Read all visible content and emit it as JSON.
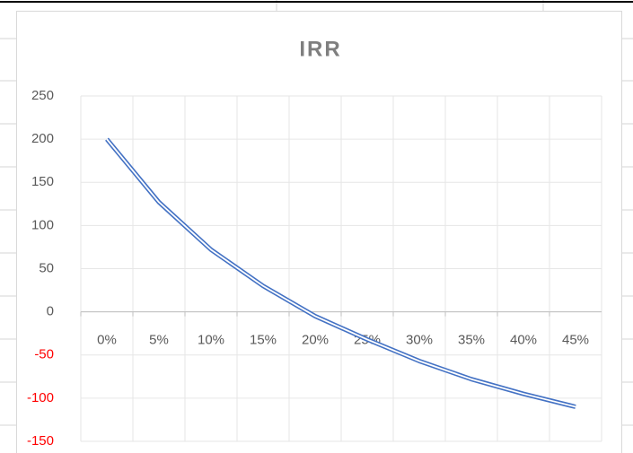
{
  "chart_data": {
    "type": "line",
    "title": "IRR",
    "categories": [
      "0%",
      "5%",
      "10%",
      "15%",
      "20%",
      "25%",
      "30%",
      "35%",
      "40%",
      "45%"
    ],
    "series": [
      {
        "color": "#4472c4",
        "values": [
          200,
          127,
          72,
          30,
          -5,
          -32,
          -57,
          -78,
          -95,
          -110
        ]
      }
    ],
    "ylim": [
      -150,
      250
    ],
    "yticks": [
      -150,
      -100,
      -50,
      0,
      50,
      100,
      150,
      200,
      250
    ],
    "grid": true,
    "negative_tick_color": "#ff0000"
  }
}
